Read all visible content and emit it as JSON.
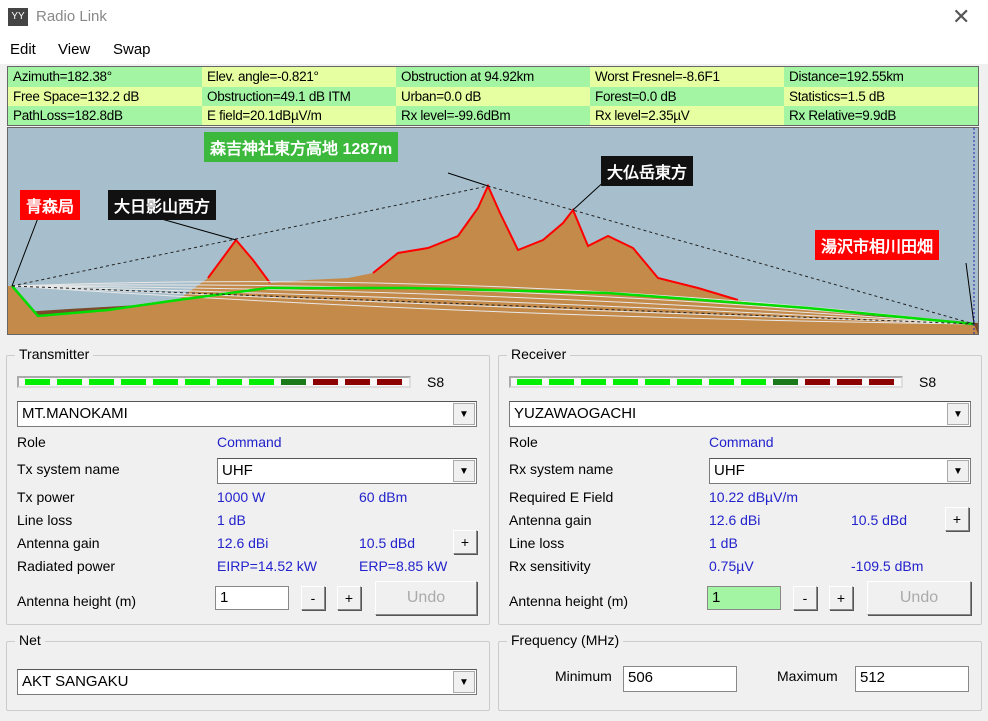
{
  "window": {
    "title": "Radio Link",
    "icon": "antenna-icon",
    "close": "✕"
  },
  "menu": [
    "Edit",
    "View",
    "Swap"
  ],
  "info": [
    [
      "Azimuth=182.38°",
      "Elev. angle=-0.821°",
      "Obstruction at 94.92km",
      "Worst Fresnel=-8.6F1",
      "Distance=192.55km"
    ],
    [
      "Free Space=132.2 dB",
      "Obstruction=49.1 dB ITM",
      "Urban=0.0 dB",
      "Forest=0.0 dB",
      "Statistics=1.5 dB"
    ],
    [
      "PathLoss=182.8dB",
      "E field=20.1dBµV/m",
      "Rx level=-99.6dBm",
      "Rx level=2.35µV",
      "Rx Relative=9.9dB"
    ]
  ],
  "profile": {
    "labels": {
      "tx": "青森局",
      "peak1": "大日影山西方",
      "highest": "森吉神社東方高地 1287m",
      "peak2": "大仏岳東方",
      "rx": "湯沢市相川田畑"
    },
    "colors": {
      "sky": "#a7bfcc",
      "terrain": "#c48a4a",
      "ground": "#7a4a2a",
      "outline": "#ff0000",
      "green": "#00dd00"
    }
  },
  "transmitter": {
    "title": "Transmitter",
    "s_meter": "S8",
    "s_level_segments": {
      "lit_green": 8,
      "dark_green": 1,
      "red": 3
    },
    "site": "MT.MANOKAMI",
    "role_label": "Role",
    "role": "Command",
    "system_label": "Tx system name",
    "system": "UHF",
    "power_label": "Tx power",
    "power_w": "1000 W",
    "power_dbm": "60 dBm",
    "lineloss_label": "Line loss",
    "lineloss": "1 dB",
    "gain_label": "Antenna gain",
    "gain_dbi": "12.6 dBi",
    "gain_dbd": "10.5 dBd",
    "rad_label": "Radiated power",
    "eirp": "EIRP=14.52 kW",
    "erp": "ERP=8.85 kW",
    "height_label": "Antenna height (m)",
    "height": "1",
    "minus": "-",
    "plus": "+",
    "undo": "Undo"
  },
  "receiver": {
    "title": "Receiver",
    "s_meter": "S8",
    "site": "YUZAWAOGACHI",
    "role_label": "Role",
    "role": "Command",
    "system_label": "Rx system name",
    "system": "UHF",
    "efield_label": "Required E Field",
    "efield": "10.22 dBµV/m",
    "gain_label": "Antenna gain",
    "gain_dbi": "12.6 dBi",
    "gain_dbd": "10.5 dBd",
    "lineloss_label": "Line loss",
    "lineloss": "1 dB",
    "sens_label": "Rx sensitivity",
    "sens_uv": "0.75µV",
    "sens_dbm": "-109.5 dBm",
    "height_label": "Antenna height (m)",
    "height": "1",
    "minus": "-",
    "plus": "+",
    "undo": "Undo"
  },
  "net": {
    "title": "Net",
    "value": "AKT SANGAKU"
  },
  "frequency": {
    "title": "Frequency (MHz)",
    "min_label": "Minimum",
    "min": "506",
    "max_label": "Maximum",
    "max": "512"
  }
}
